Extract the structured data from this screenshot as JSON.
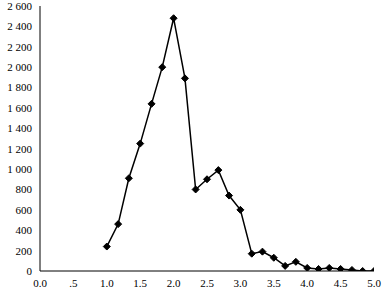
{
  "chart_data": {
    "type": "line",
    "x": [
      1.0,
      1.17,
      1.33,
      1.5,
      1.67,
      1.83,
      2.0,
      2.17,
      2.33,
      2.5,
      2.67,
      2.83,
      3.0,
      3.17,
      3.33,
      3.5,
      3.67,
      3.83,
      4.0,
      4.17,
      4.33,
      4.5,
      4.67,
      4.83,
      5.0
    ],
    "values": [
      240,
      460,
      910,
      1250,
      1640,
      2000,
      2480,
      1890,
      800,
      900,
      990,
      740,
      600,
      170,
      190,
      130,
      50,
      90,
      30,
      20,
      30,
      20,
      10,
      0,
      0
    ],
    "color": "#000000",
    "marker": "diamond",
    "xlim": [
      0,
      5
    ],
    "xticks": [
      {
        "value": 0,
        "label": "0.0"
      },
      {
        "value": 0.5,
        "label": ".5"
      },
      {
        "value": 1,
        "label": "1.0"
      },
      {
        "value": 1.5,
        "label": "1.5"
      },
      {
        "value": 2,
        "label": "2.0"
      },
      {
        "value": 2.5,
        "label": "2.5"
      },
      {
        "value": 3,
        "label": "3.0"
      },
      {
        "value": 3.5,
        "label": "3.5"
      },
      {
        "value": 4,
        "label": "4.0"
      },
      {
        "value": 4.5,
        "label": "4.5"
      },
      {
        "value": 5,
        "label": "5.0"
      }
    ],
    "ylim": [
      0,
      2600
    ],
    "yticks": [
      0,
      200,
      400,
      600,
      800,
      {
        "value": 1000,
        "label": "1 000"
      },
      {
        "value": 1200,
        "label": "1 200"
      },
      {
        "value": 1400,
        "label": "1 400"
      },
      {
        "value": 1600,
        "label": "1 600"
      },
      {
        "value": 1800,
        "label": "1 800"
      },
      {
        "value": 2000,
        "label": "2 000"
      },
      {
        "value": 2200,
        "label": "2 200"
      },
      {
        "value": 2400,
        "label": "2 400"
      },
      {
        "value": 2600,
        "label": "2 600"
      }
    ],
    "grid": false
  }
}
